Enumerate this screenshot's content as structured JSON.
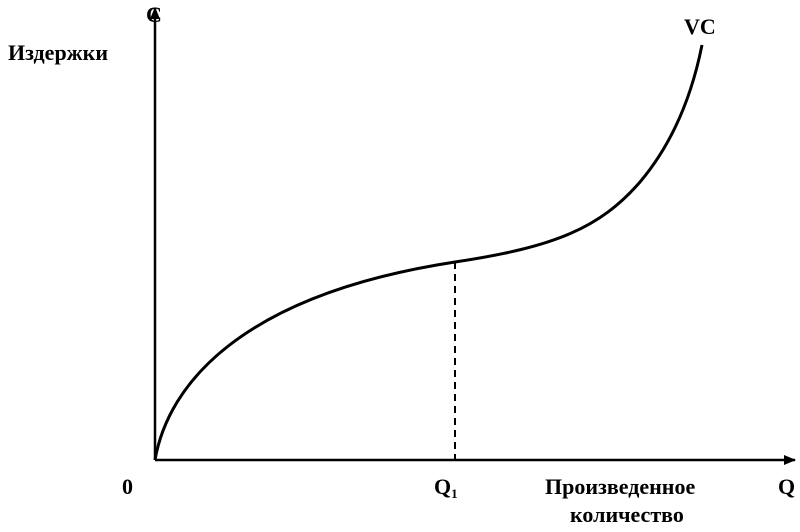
{
  "axes": {
    "y_letter": "C",
    "y_label": "Издержки",
    "x_letter": "Q",
    "x_label_line1": "Произведенное",
    "x_label_line2": "количество",
    "origin": "0"
  },
  "curve": {
    "label": "VC"
  },
  "marker": {
    "letter": "Q",
    "subscript": "1"
  }
}
